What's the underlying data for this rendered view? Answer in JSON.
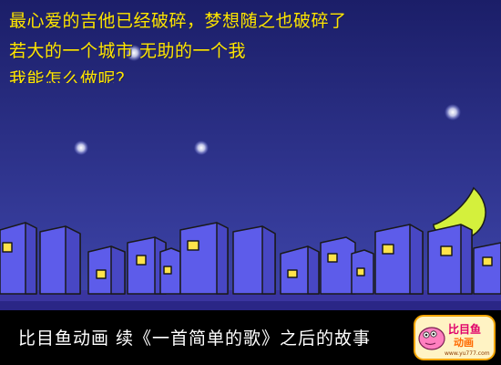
{
  "lyrics": [
    "最心爱的吉他已经破碎，梦想随之也破碎了",
    "若大的一个城市 无助的一个我",
    "我能怎么做呢？"
  ],
  "caption": "比目鱼动画  续《一首简单的歌》之后的故事",
  "logo": {
    "title": "比目鱼",
    "subtitle": "动画",
    "url": "www.yu777.com"
  },
  "colors": {
    "sky_top": "#1c1f6b",
    "sky_bottom": "#3d44a8",
    "building": "#5a59e6",
    "window": "#ffe34a",
    "moon": "#d2ef3a",
    "lyric": "#ffe600"
  }
}
